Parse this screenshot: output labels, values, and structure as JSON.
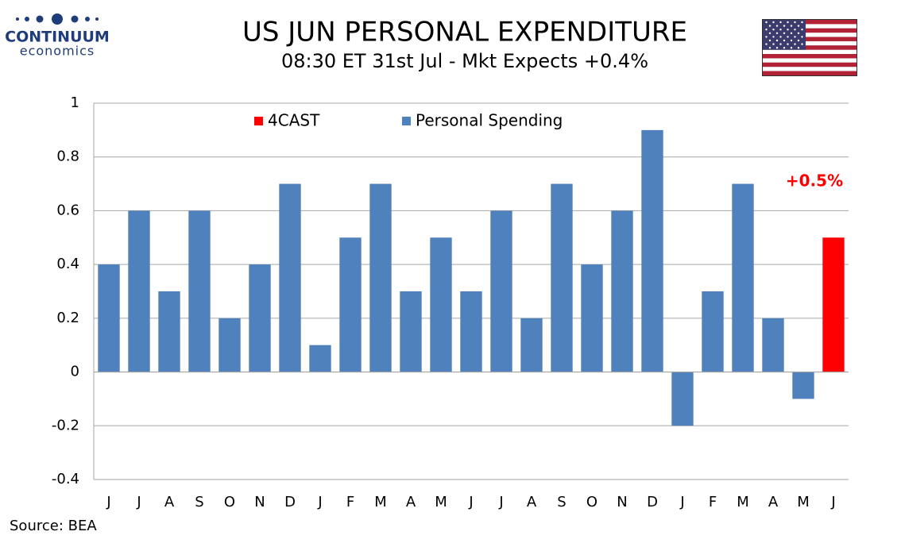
{
  "logo": {
    "name": "CONTINUUM",
    "tagline": "economics"
  },
  "chart_data": {
    "type": "bar",
    "title": "US JUN PERSONAL EXPENDITURE",
    "subtitle": "08:30 ET 31st Jul - Mkt Expects +0.4%",
    "categories": [
      "J",
      "J",
      "A",
      "S",
      "O",
      "N",
      "D",
      "J",
      "F",
      "M",
      "A",
      "M",
      "J",
      "J",
      "A",
      "S",
      "O",
      "N",
      "D",
      "J",
      "F",
      "M",
      "A",
      "M",
      "J"
    ],
    "series": [
      {
        "name": "4CAST",
        "color": "#ff0000",
        "values": [
          null,
          null,
          null,
          null,
          null,
          null,
          null,
          null,
          null,
          null,
          null,
          null,
          null,
          null,
          null,
          null,
          null,
          null,
          null,
          null,
          null,
          null,
          null,
          null,
          0.5
        ]
      },
      {
        "name": "Personal Spending",
        "color": "#4f81bd",
        "values": [
          0.4,
          0.6,
          0.3,
          0.6,
          0.2,
          0.4,
          0.7,
          0.1,
          0.5,
          0.7,
          0.3,
          0.5,
          0.3,
          0.6,
          0.2,
          0.7,
          0.4,
          0.6,
          0.9,
          -0.2,
          0.3,
          0.7,
          0.2,
          -0.1,
          null
        ]
      }
    ],
    "annotation": "+0.5%",
    "ylim": [
      -0.4,
      1
    ],
    "yticks": [
      -0.4,
      -0.2,
      0,
      0.2,
      0.4,
      0.6,
      0.8,
      1
    ],
    "grid": true,
    "source": "Source: BEA"
  }
}
